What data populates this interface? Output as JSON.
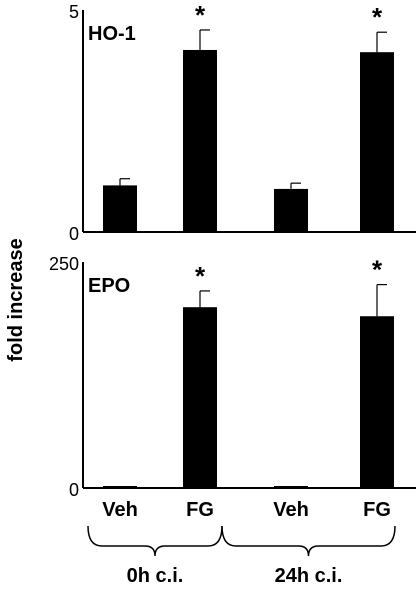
{
  "ylabel": "fold increase",
  "group_labels": [
    "0h c.i.",
    "24h c.i."
  ],
  "chart_data": [
    {
      "type": "bar",
      "title": "HO-1",
      "categories": [
        "Veh",
        "FG",
        "Veh",
        "FG"
      ],
      "values": [
        1.05,
        4.1,
        0.97,
        4.05
      ],
      "errors": [
        0.15,
        0.45,
        0.13,
        0.45
      ],
      "significance": [
        "",
        "*",
        "",
        "*"
      ],
      "ylim": [
        0,
        5
      ],
      "yticks": [
        "0",
        "5"
      ]
    },
    {
      "type": "bar",
      "title": "EPO",
      "categories": [
        "Veh",
        "FG",
        "Veh",
        "FG"
      ],
      "values": [
        1,
        200,
        1,
        190
      ],
      "errors": [
        0,
        18,
        0,
        35
      ],
      "significance": [
        "",
        "*",
        "",
        "*"
      ],
      "ylim": [
        0,
        250
      ],
      "yticks": [
        "0",
        "250"
      ]
    }
  ]
}
